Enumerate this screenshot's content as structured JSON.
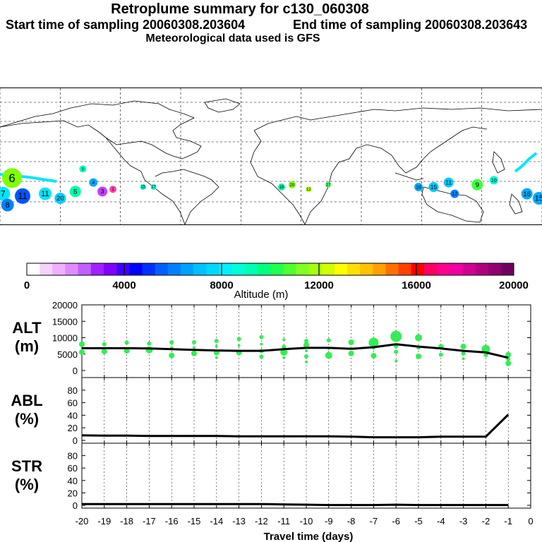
{
  "header": {
    "title": "Retroplume summary for c130_060308",
    "start_label": "Start time of sampling 20060308.203604",
    "end_label": "End time of sampling 20060308.203643",
    "met_label": "Meteorological data used is GFS"
  },
  "map": {
    "description_labels": [
      "19",
      "20",
      "12",
      "14",
      "17",
      "18",
      "16",
      "15",
      "13",
      "11",
      "9",
      "10",
      "6",
      "8",
      "7",
      "5",
      "4",
      "3",
      "1"
    ],
    "clusters": [
      {
        "lon": -172,
        "lat": 4,
        "label": "6",
        "color": "#7FFF00",
        "size": 14
      },
      {
        "lon": -178,
        "lat": -3,
        "label": "7",
        "color": "#00E5FF",
        "size": 10
      },
      {
        "lon": -175,
        "lat": -8,
        "label": "8",
        "color": "#0080FF",
        "size": 9
      },
      {
        "lon": -165,
        "lat": -4,
        "label": "11",
        "color": "#0055FF",
        "size": 11
      },
      {
        "lon": -150,
        "lat": -3,
        "label": "11",
        "color": "#00E5FF",
        "size": 9
      },
      {
        "lon": -140,
        "lat": -5,
        "label": "20",
        "color": "#00D0FF",
        "size": 8
      },
      {
        "lon": -130,
        "lat": -2,
        "label": "5",
        "color": "#00FFAA",
        "size": 8
      },
      {
        "lon": -125,
        "lat": 8,
        "label": "9",
        "color": "#00FFC0",
        "size": 5
      },
      {
        "lon": -118,
        "lat": 2,
        "label": "4",
        "color": "#00AAFF",
        "size": 6
      },
      {
        "lon": -112,
        "lat": -2,
        "label": "3",
        "color": "#C040FF",
        "size": 7
      },
      {
        "lon": -105,
        "lat": -1,
        "label": "1",
        "color": "#FF40A0",
        "size": 5
      },
      {
        "lon": -85,
        "lat": 0,
        "label": "15",
        "color": "#00FFD0",
        "size": 4
      },
      {
        "lon": -78,
        "lat": 0,
        "label": "17",
        "color": "#00FFD0",
        "size": 4
      },
      {
        "lon": 7,
        "lat": 0,
        "label": "19",
        "color": "#00FF99",
        "size": 5
      },
      {
        "lon": 14,
        "lat": 1,
        "label": "20",
        "color": "#7FFF00",
        "size": 5
      },
      {
        "lon": 25,
        "lat": -1,
        "label": "12",
        "color": "#B0FF00",
        "size": 4
      },
      {
        "lon": 38,
        "lat": 1,
        "label": "17",
        "color": "#40FF60",
        "size": 4
      },
      {
        "lon": 98,
        "lat": 0,
        "label": "18",
        "color": "#00AAFF",
        "size": 6
      },
      {
        "lon": 108,
        "lat": 0,
        "label": "15",
        "color": "#00C8FF",
        "size": 7
      },
      {
        "lon": 118,
        "lat": 2,
        "label": "11",
        "color": "#00C8FF",
        "size": 7
      },
      {
        "lon": 122,
        "lat": -3,
        "label": "17",
        "color": "#0080FF",
        "size": 6
      },
      {
        "lon": 137,
        "lat": 1,
        "label": "9",
        "color": "#40FF40",
        "size": 8
      },
      {
        "lon": 148,
        "lat": 3,
        "label": "10",
        "color": "#00FFD0",
        "size": 6
      },
      {
        "lon": 170,
        "lat": -3,
        "label": "16",
        "color": "#00AAFF",
        "size": 8
      },
      {
        "lon": 178,
        "lat": -5,
        "label": "15",
        "color": "#00AAFF",
        "size": 9
      }
    ]
  },
  "colorbar": {
    "title": "Altitude (m)",
    "ticks": [
      "0",
      "4000",
      "8000",
      "12000",
      "16000",
      "20000"
    ],
    "colors": [
      "#ffffff",
      "#f6d2ff",
      "#eeb0ff",
      "#e08aff",
      "#c060ff",
      "#a020ff",
      "#8000ff",
      "#4000ff",
      "#0000ff",
      "#0030ff",
      "#0060ff",
      "#0080ff",
      "#00a0ff",
      "#00c0ff",
      "#00d8ff",
      "#00f0ff",
      "#00ffd8",
      "#00ffb0",
      "#00ff80",
      "#20ff50",
      "#50ff30",
      "#80ff20",
      "#a8ff10",
      "#d0ff00",
      "#ffff00",
      "#ffe000",
      "#ffc000",
      "#ffa000",
      "#ff7000",
      "#ff4000",
      "#ff0000",
      "#ff0060",
      "#ff0090",
      "#f000a0",
      "#d00090",
      "#b00080",
      "#900070",
      "#700060"
    ]
  },
  "chart_data": [
    {
      "type": "scatter",
      "panel_label": "ALT\n(m)",
      "panel_label_lines": [
        "ALT",
        "(m)"
      ],
      "ylabel": "ALT (m)",
      "ylim": [
        0,
        20000
      ],
      "yticks": [
        "0",
        "5000",
        "10000",
        "15000",
        "20000"
      ],
      "mean_line": {
        "x": [
          -20,
          -19,
          -18,
          -17,
          -16,
          -15,
          -14,
          -13,
          -12,
          -11,
          -10,
          -9,
          -8,
          -7,
          -6,
          -5,
          -4,
          -3,
          -2,
          -1
        ],
        "y": [
          6800,
          6800,
          6800,
          6700,
          6500,
          6300,
          6100,
          6000,
          6000,
          6500,
          6900,
          6900,
          6600,
          7100,
          8000,
          7300,
          6700,
          6000,
          5500,
          3900
        ]
      },
      "points": [
        {
          "x": -20,
          "y": 8000,
          "s": 4
        },
        {
          "x": -20,
          "y": 5600,
          "s": 4
        },
        {
          "x": -19,
          "y": 8000,
          "s": 3
        },
        {
          "x": -19,
          "y": 5800,
          "s": 4
        },
        {
          "x": -18,
          "y": 8500,
          "s": 3
        },
        {
          "x": -18,
          "y": 6000,
          "s": 4
        },
        {
          "x": -17,
          "y": 8200,
          "s": 3
        },
        {
          "x": -17,
          "y": 6300,
          "s": 5
        },
        {
          "x": -16,
          "y": 8600,
          "s": 3
        },
        {
          "x": -16,
          "y": 7000,
          "s": 2
        },
        {
          "x": -16,
          "y": 4600,
          "s": 4
        },
        {
          "x": -15,
          "y": 8600,
          "s": 3
        },
        {
          "x": -15,
          "y": 7000,
          "s": 2
        },
        {
          "x": -15,
          "y": 5200,
          "s": 4
        },
        {
          "x": -14,
          "y": 9000,
          "s": 3
        },
        {
          "x": -14,
          "y": 7400,
          "s": 2
        },
        {
          "x": -14,
          "y": 5500,
          "s": 4
        },
        {
          "x": -14,
          "y": 3900,
          "s": 2
        },
        {
          "x": -13,
          "y": 9600,
          "s": 3
        },
        {
          "x": -13,
          "y": 7600,
          "s": 2
        },
        {
          "x": -13,
          "y": 5500,
          "s": 4
        },
        {
          "x": -12,
          "y": 10200,
          "s": 3
        },
        {
          "x": -12,
          "y": 8000,
          "s": 2
        },
        {
          "x": -12,
          "y": 6000,
          "s": 3
        },
        {
          "x": -12,
          "y": 4200,
          "s": 3
        },
        {
          "x": -11,
          "y": 9400,
          "s": 2
        },
        {
          "x": -11,
          "y": 7200,
          "s": 3
        },
        {
          "x": -11,
          "y": 5600,
          "s": 5
        },
        {
          "x": -11,
          "y": 3900,
          "s": 2
        },
        {
          "x": -10,
          "y": 9000,
          "s": 3
        },
        {
          "x": -10,
          "y": 7800,
          "s": 4
        },
        {
          "x": -10,
          "y": 6000,
          "s": 2
        },
        {
          "x": -10,
          "y": 4300,
          "s": 3
        },
        {
          "x": -10,
          "y": 2600,
          "s": 2
        },
        {
          "x": -9,
          "y": 9200,
          "s": 3
        },
        {
          "x": -9,
          "y": 6700,
          "s": 2
        },
        {
          "x": -9,
          "y": 4600,
          "s": 5
        },
        {
          "x": -8,
          "y": 8600,
          "s": 4
        },
        {
          "x": -8,
          "y": 6800,
          "s": 2
        },
        {
          "x": -8,
          "y": 5200,
          "s": 4
        },
        {
          "x": -7,
          "y": 8500,
          "s": 7
        },
        {
          "x": -7,
          "y": 6800,
          "s": 2
        },
        {
          "x": -7,
          "y": 4500,
          "s": 4
        },
        {
          "x": -6,
          "y": 10400,
          "s": 8
        },
        {
          "x": -6,
          "y": 7400,
          "s": 3
        },
        {
          "x": -6,
          "y": 5700,
          "s": 3
        },
        {
          "x": -6,
          "y": 2900,
          "s": 2
        },
        {
          "x": -5,
          "y": 10000,
          "s": 5
        },
        {
          "x": -5,
          "y": 7000,
          "s": 3
        },
        {
          "x": -5,
          "y": 4300,
          "s": 4
        },
        {
          "x": -4,
          "y": 7200,
          "s": 4
        },
        {
          "x": -4,
          "y": 4800,
          "s": 3
        },
        {
          "x": -3,
          "y": 7300,
          "s": 4
        },
        {
          "x": -3,
          "y": 5200,
          "s": 3
        },
        {
          "x": -3,
          "y": 3600,
          "s": 2
        },
        {
          "x": -2,
          "y": 6500,
          "s": 6
        },
        {
          "x": -2,
          "y": 4700,
          "s": 3
        },
        {
          "x": -1,
          "y": 4800,
          "s": 4
        },
        {
          "x": -1,
          "y": 3500,
          "s": 3
        },
        {
          "x": -1,
          "y": 2200,
          "s": 4
        }
      ]
    },
    {
      "type": "line",
      "panel_label_lines": [
        "ABL",
        "(%)"
      ],
      "ylabel": "ABL (%)",
      "ylim": [
        0,
        100
      ],
      "yticks": [
        "0",
        "20",
        "40",
        "60",
        "80"
      ],
      "x": [
        -20,
        -19,
        -18,
        -17,
        -16,
        -15,
        -14,
        -13,
        -12,
        -11,
        -10,
        -9,
        -8,
        -7,
        -6,
        -5,
        -4,
        -3,
        -2,
        -1
      ],
      "y": [
        8,
        7.5,
        7.5,
        7,
        7,
        7,
        7,
        6.5,
        6.5,
        6.5,
        6.5,
        6.5,
        6,
        5,
        5,
        5,
        6,
        6,
        6,
        41
      ]
    },
    {
      "type": "line",
      "panel_label_lines": [
        "STR",
        "(%)"
      ],
      "ylabel": "STR (%)",
      "ylim": [
        0,
        100
      ],
      "yticks": [
        "0",
        "20",
        "40",
        "60",
        "80"
      ],
      "x": [
        -20,
        -19,
        -18,
        -17,
        -16,
        -15,
        -14,
        -13,
        -12,
        -11,
        -10,
        -9,
        -8,
        -7,
        -6,
        -5,
        -4,
        -3,
        -2,
        -1
      ],
      "y": [
        2,
        2,
        2,
        2,
        2,
        2,
        2,
        2,
        2,
        1.5,
        1,
        0.5,
        0.5,
        0.5,
        1,
        0.5,
        0.5,
        0.5,
        0.5,
        0.5
      ]
    }
  ],
  "xaxis": {
    "label": "Travel time (days)",
    "xlim": [
      -20,
      0
    ],
    "ticks": [
      "-20",
      "-19",
      "-18",
      "-17",
      "-16",
      "-15",
      "-14",
      "-13",
      "-12",
      "-11",
      "-10",
      "-9",
      "-8",
      "-7",
      "-6",
      "-5",
      "-4",
      "-3",
      "-2",
      "-1",
      "0"
    ]
  }
}
